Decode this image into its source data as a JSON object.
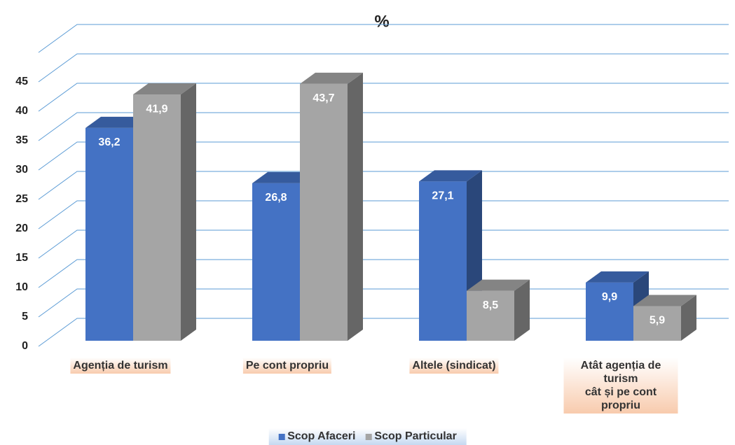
{
  "chart_data": {
    "type": "bar3d",
    "title": "%",
    "categories": [
      "Agenția de turism",
      "Pe cont propriu",
      "Altele (sindicat)",
      "Atât agenția de\nturism\ncât și pe cont propriu"
    ],
    "series": [
      {
        "name": "Scop Afaceri",
        "color": "#4472c4",
        "values": [
          36.2,
          26.8,
          27.1,
          9.9
        ],
        "value_labels": [
          "36,2",
          "26,8",
          "27,1",
          "9,9"
        ]
      },
      {
        "name": "Scop Particular",
        "color": "#a5a5a5",
        "values": [
          41.9,
          43.7,
          8.5,
          5.9
        ],
        "value_labels": [
          "41,9",
          "43,7",
          "8,5",
          "5,9"
        ]
      }
    ],
    "ylim": [
      0,
      50
    ],
    "yticks": [
      0,
      5,
      10,
      15,
      20,
      25,
      30,
      35,
      40,
      45
    ],
    "grid": true,
    "legend": "bottom"
  }
}
